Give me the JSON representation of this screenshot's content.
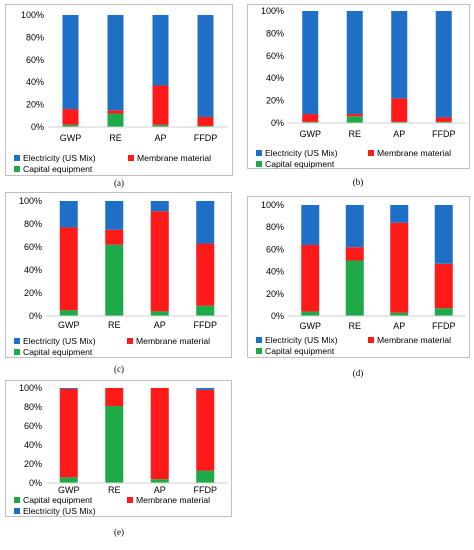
{
  "colors": {
    "Electricity (US Mix)": "#1f6fc6",
    "Membrane material": "#ff1a1a",
    "Capital equipment": "#1faa4a"
  },
  "chart_data": [
    {
      "id": "a",
      "type": "bar",
      "stacked": true,
      "caption": "(a)",
      "categories": [
        "GWP",
        "RE",
        "AP",
        "FFDP"
      ],
      "series": [
        {
          "name": "Capital equipment",
          "values": [
            2,
            12,
            2,
            1
          ]
        },
        {
          "name": "Membrane material",
          "values": [
            14,
            3,
            35,
            8
          ]
        },
        {
          "name": "Electricity (US Mix)",
          "values": [
            84,
            85,
            63,
            91
          ]
        }
      ],
      "ylim": [
        0,
        100
      ],
      "yticks": [
        "0%",
        "20%",
        "40%",
        "60%",
        "80%",
        "100%"
      ],
      "legend": [
        "Electricity (US Mix)",
        "Membrane material",
        "Capital equipment"
      ],
      "grid": false
    },
    {
      "id": "b",
      "type": "bar",
      "stacked": true,
      "caption": "(b)",
      "categories": [
        "GWP",
        "RE",
        "AP",
        "FFDP"
      ],
      "series": [
        {
          "name": "Capital equipment",
          "values": [
            1,
            6,
            1,
            1
          ]
        },
        {
          "name": "Membrane material",
          "values": [
            7,
            2,
            21,
            4
          ]
        },
        {
          "name": "Electricity (US Mix)",
          "values": [
            92,
            92,
            78,
            95
          ]
        }
      ],
      "ylim": [
        0,
        100
      ],
      "yticks": [
        "0%",
        "20%",
        "40%",
        "60%",
        "80%",
        "100%"
      ],
      "legend": [
        "Electricity (US Mix)",
        "Membrane material",
        "Capital equipment"
      ],
      "grid": false
    },
    {
      "id": "c",
      "type": "bar",
      "stacked": true,
      "caption": "(c)",
      "categories": [
        "GWP",
        "RE",
        "AP",
        "FFDP"
      ],
      "series": [
        {
          "name": "Capital equipment",
          "values": [
            5,
            62,
            4,
            9
          ]
        },
        {
          "name": "Membrane material",
          "values": [
            72,
            13,
            87,
            54
          ]
        },
        {
          "name": "Electricity (US Mix)",
          "values": [
            23,
            25,
            9,
            37
          ]
        }
      ],
      "ylim": [
        0,
        100
      ],
      "yticks": [
        "0%",
        "20%",
        "40%",
        "60%",
        "80%",
        "100%"
      ],
      "legend": [
        "Electricity (US Mix)",
        "Membrane material",
        "Capital equipment"
      ],
      "grid": false
    },
    {
      "id": "d",
      "type": "bar",
      "stacked": true,
      "caption": "(d)",
      "categories": [
        "GWP",
        "RE",
        "AP",
        "FFDP"
      ],
      "series": [
        {
          "name": "Capital equipment",
          "values": [
            4,
            50,
            3,
            7
          ]
        },
        {
          "name": "Membrane material",
          "values": [
            60,
            12,
            81,
            40
          ]
        },
        {
          "name": "Electricity (US Mix)",
          "values": [
            36,
            38,
            16,
            53
          ]
        }
      ],
      "ylim": [
        0,
        100
      ],
      "yticks": [
        "0%",
        "20%",
        "40%",
        "60%",
        "80%",
        "100%"
      ],
      "legend": [
        "Electricity (US Mix)",
        "Membrane material",
        "Capital equipment"
      ],
      "grid": false
    },
    {
      "id": "e",
      "type": "bar",
      "stacked": true,
      "caption": "(e)",
      "categories": [
        "GWP",
        "RE",
        "AP",
        "FFDP"
      ],
      "series": [
        {
          "name": "Capital equipment",
          "values": [
            6,
            81,
            4,
            13
          ]
        },
        {
          "name": "Membrane material",
          "values": [
            93,
            19,
            96,
            85
          ]
        },
        {
          "name": "Electricity (US Mix)",
          "values": [
            1,
            0,
            0,
            2
          ]
        }
      ],
      "ylim": [
        0,
        100
      ],
      "yticks": [
        "0%",
        "20%",
        "40%",
        "60%",
        "80%",
        "100%"
      ],
      "legend": [
        "Capital equipment",
        "Membrane material",
        "Electricity (US Mix)"
      ],
      "grid": false
    }
  ]
}
